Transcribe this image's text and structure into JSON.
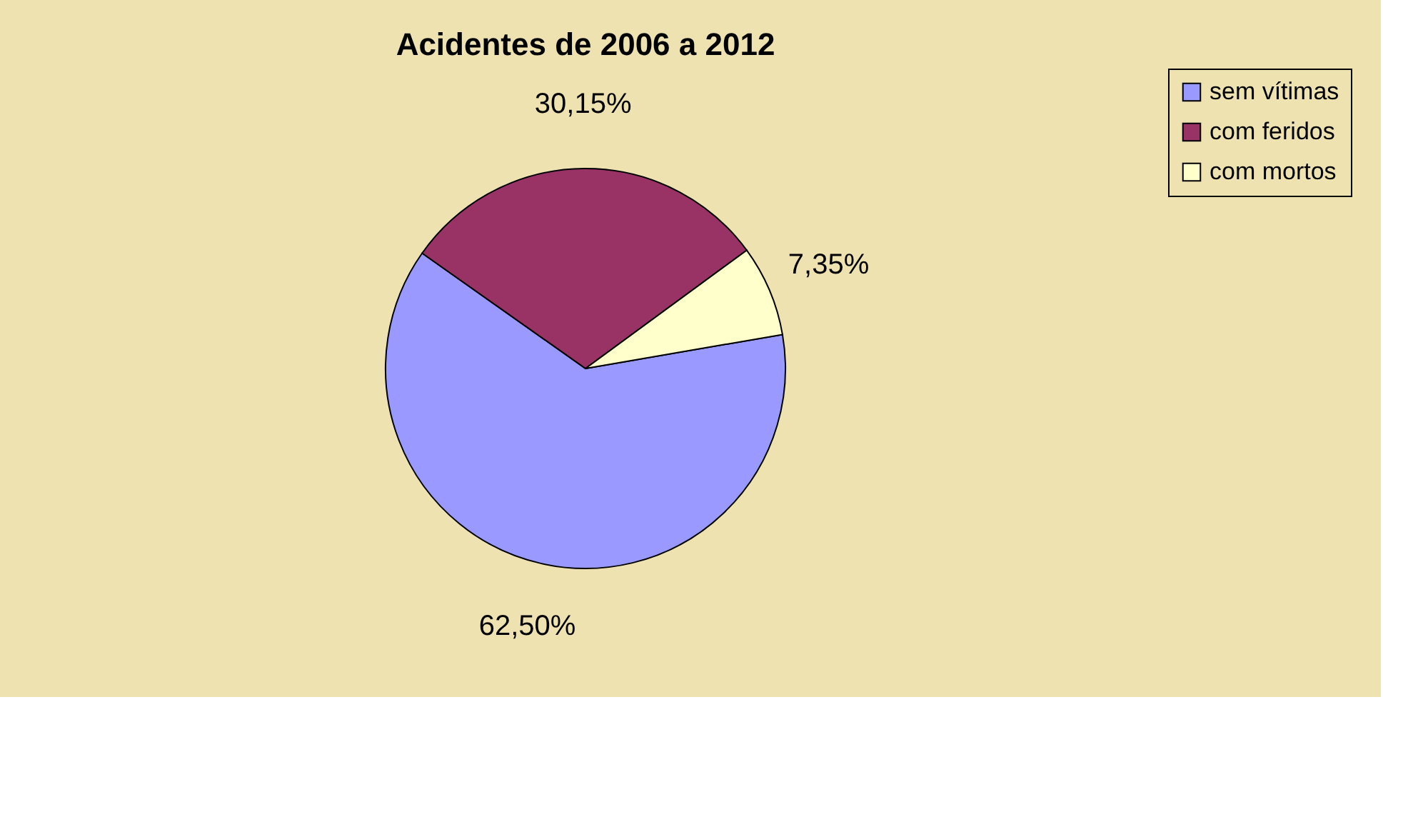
{
  "chart_data": {
    "type": "pie",
    "title": "Acidentes de 2006 a 2012",
    "categories": [
      "sem vítimas",
      "com feridos",
      "com mortos"
    ],
    "values": [
      62.5,
      30.15,
      7.35
    ],
    "colors": [
      "#9999ff",
      "#993366",
      "#ffffcc"
    ],
    "value_labels": [
      "62,50%",
      "30,15%",
      "7,35%"
    ],
    "legend": "right"
  }
}
